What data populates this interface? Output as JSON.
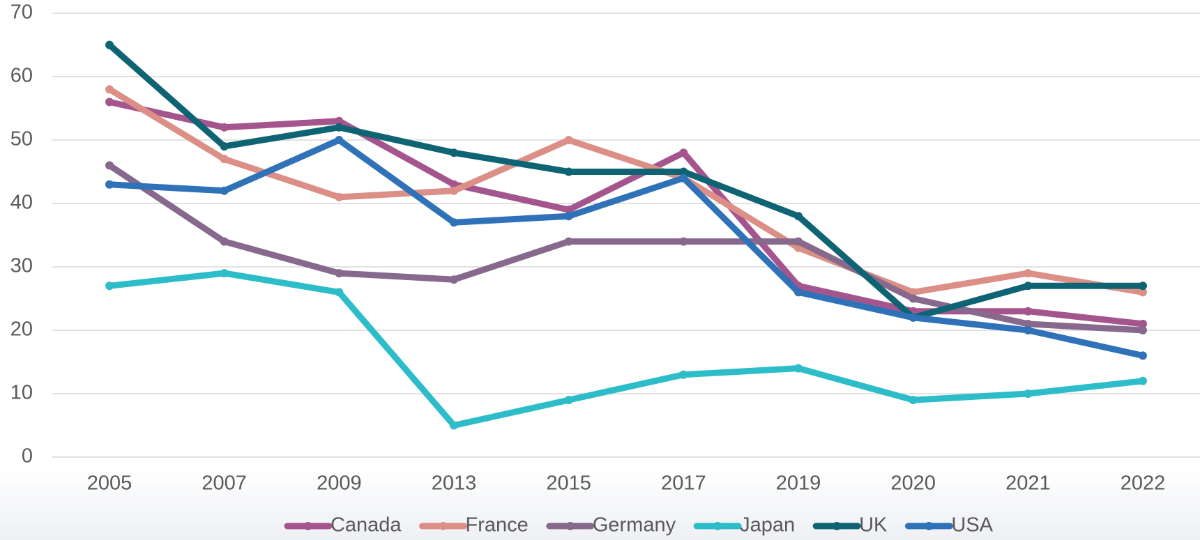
{
  "chart_data": {
    "type": "line",
    "categories": [
      "2005",
      "2007",
      "2009",
      "2013",
      "2015",
      "2017",
      "2019",
      "2020",
      "2021",
      "2022"
    ],
    "series": [
      {
        "name": "Canada",
        "color": "#a4558e",
        "values": [
          56,
          52,
          53,
          43,
          39,
          48,
          27,
          23,
          23,
          21
        ]
      },
      {
        "name": "France",
        "color": "#dc8f86",
        "values": [
          58,
          47,
          41,
          42,
          50,
          44,
          33,
          26,
          29,
          26
        ]
      },
      {
        "name": "Germany",
        "color": "#86698c",
        "values": [
          46,
          34,
          29,
          28,
          34,
          34,
          34,
          25,
          21,
          20
        ]
      },
      {
        "name": "Japan",
        "color": "#2dbdc9",
        "values": [
          27,
          29,
          26,
          5,
          9,
          13,
          14,
          9,
          10,
          12
        ]
      },
      {
        "name": "UK",
        "color": "#0f6474",
        "values": [
          65,
          49,
          52,
          48,
          45,
          45,
          38,
          22,
          27,
          27
        ]
      },
      {
        "name": "USA",
        "color": "#2f72b8",
        "values": [
          43,
          42,
          50,
          37,
          38,
          44,
          26,
          22,
          20,
          16
        ]
      }
    ],
    "ylim": [
      0,
      70
    ],
    "yticks": [
      0,
      10,
      20,
      30,
      40,
      50,
      60,
      70
    ],
    "grid": true,
    "legend": "bottom"
  }
}
